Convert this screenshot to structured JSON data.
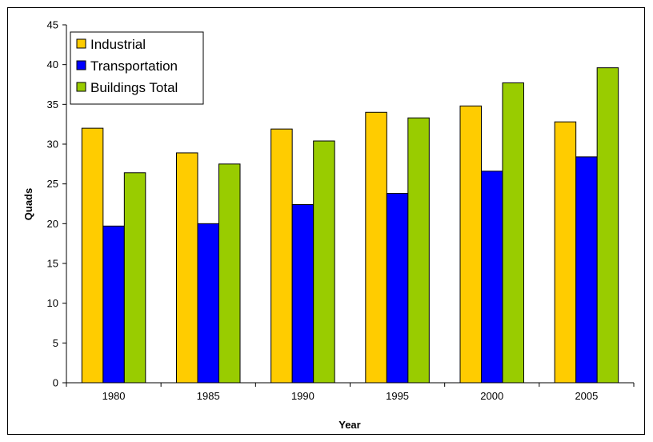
{
  "chart_data": {
    "type": "bar",
    "title": "",
    "xlabel": "Year",
    "ylabel": "Quads",
    "categories": [
      "1980",
      "1985",
      "1990",
      "1995",
      "2000",
      "2005"
    ],
    "series": [
      {
        "name": "Industrial",
        "color": "#FFCC00",
        "values": [
          32.0,
          28.9,
          31.9,
          34.0,
          34.8,
          32.8
        ]
      },
      {
        "name": "Transportation",
        "color": "#0000FF",
        "values": [
          19.7,
          20.0,
          22.4,
          23.8,
          26.6,
          28.4
        ]
      },
      {
        "name": "Buildings Total",
        "color": "#99CC00",
        "values": [
          26.4,
          27.5,
          30.4,
          33.3,
          37.7,
          39.6
        ]
      }
    ],
    "ylim": [
      0,
      45
    ],
    "yticks": [
      "0",
      "5",
      "10",
      "15",
      "20",
      "25",
      "30",
      "35",
      "40",
      "45"
    ],
    "grid": false,
    "legend_position": "top-left"
  }
}
